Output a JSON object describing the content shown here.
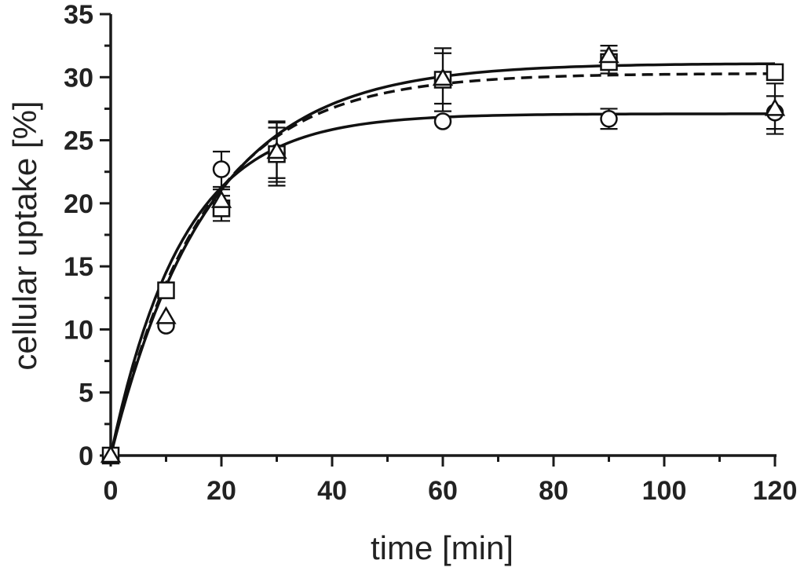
{
  "chart_data": {
    "type": "scatter",
    "title": "",
    "xlabel": "time [min]",
    "ylabel": "cellular uptake [%]",
    "xlim": [
      0,
      120
    ],
    "ylim": [
      0,
      35
    ],
    "xticks": [
      0,
      20,
      40,
      60,
      80,
      100,
      120
    ],
    "yticks": [
      0,
      5,
      10,
      15,
      20,
      25,
      30,
      35
    ],
    "xtick_labels": [
      "0",
      "20",
      "40",
      "60",
      "80",
      "100",
      "120"
    ],
    "ytick_labels": [
      "0",
      "5",
      "10",
      "15",
      "20",
      "25",
      "30",
      "35"
    ],
    "series": [
      {
        "name": "circle",
        "marker": "circle",
        "x": [
          0,
          10,
          20,
          30,
          60,
          90,
          120
        ],
        "y": [
          0,
          10.3,
          22.7,
          24.0,
          26.5,
          26.7,
          27.2
        ],
        "yerr": [
          0,
          0,
          1.4,
          2.0,
          0,
          0.8,
          1.3
        ],
        "fit": {
          "style": "solid",
          "plateau": 27.1,
          "k": 0.0768
        }
      },
      {
        "name": "square",
        "marker": "square",
        "x": [
          0,
          10,
          20,
          30,
          60,
          90,
          120
        ],
        "y": [
          0,
          13.1,
          19.6,
          23.9,
          29.8,
          31.2,
          30.4
        ],
        "yerr": [
          0,
          0,
          1.0,
          2.5,
          2.5,
          0.9,
          0
        ],
        "fit": {
          "style": "solid",
          "plateau": 31.1,
          "k": 0.0566
        }
      },
      {
        "name": "triangle",
        "marker": "triangle",
        "x": [
          0,
          10,
          20,
          30,
          60,
          90,
          120
        ],
        "y": [
          0,
          11.0,
          20.2,
          24.1,
          29.9,
          31.7,
          27.5
        ],
        "yerr": [
          0,
          0,
          0.9,
          2.4,
          2.0,
          0.8,
          2.0
        ],
        "fit": {
          "style": "dashed",
          "plateau": 30.3,
          "k": 0.06
        }
      }
    ]
  }
}
